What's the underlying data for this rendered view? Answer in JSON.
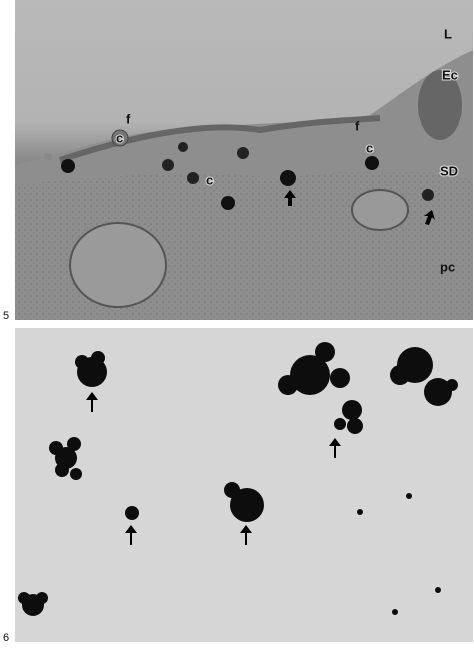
{
  "panel_5": {
    "number": "5",
    "labels": [
      "L",
      "Ec",
      "f",
      "c",
      "f",
      "c",
      "c",
      "SD",
      "pc"
    ]
  },
  "panel_6": {
    "number": "6"
  }
}
